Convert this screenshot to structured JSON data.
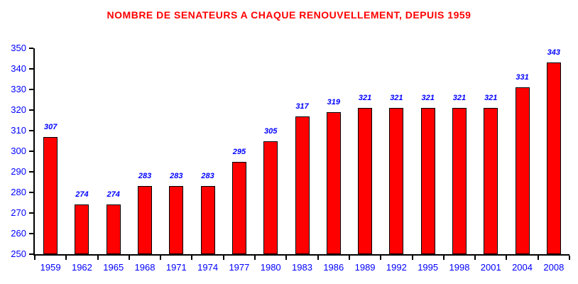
{
  "chart_data": {
    "type": "bar",
    "title": "NOMBRE DE SENATEURS A CHAQUE RENOUVELLEMENT, DEPUIS 1959",
    "categories": [
      "1959",
      "1962",
      "1965",
      "1968",
      "1971",
      "1974",
      "1977",
      "1980",
      "1983",
      "1986",
      "1989",
      "1992",
      "1995",
      "1998",
      "2001",
      "2004",
      "2008"
    ],
    "values": [
      307,
      274,
      274,
      283,
      283,
      283,
      295,
      305,
      317,
      319,
      321,
      321,
      321,
      321,
      321,
      331,
      343
    ],
    "xlabel": "",
    "ylabel": "",
    "ylim": [
      250,
      350
    ],
    "ytick_step": 10,
    "grid": false,
    "legend": "none",
    "value_labels_shown": true,
    "colors": {
      "bar_fill": "#ff0000",
      "bar_border": "#000000",
      "title": "#ff0000",
      "axis": "#000000",
      "tick_labels": "#0000ff",
      "value_labels": "#0000ff",
      "background": "#ffffff"
    }
  }
}
